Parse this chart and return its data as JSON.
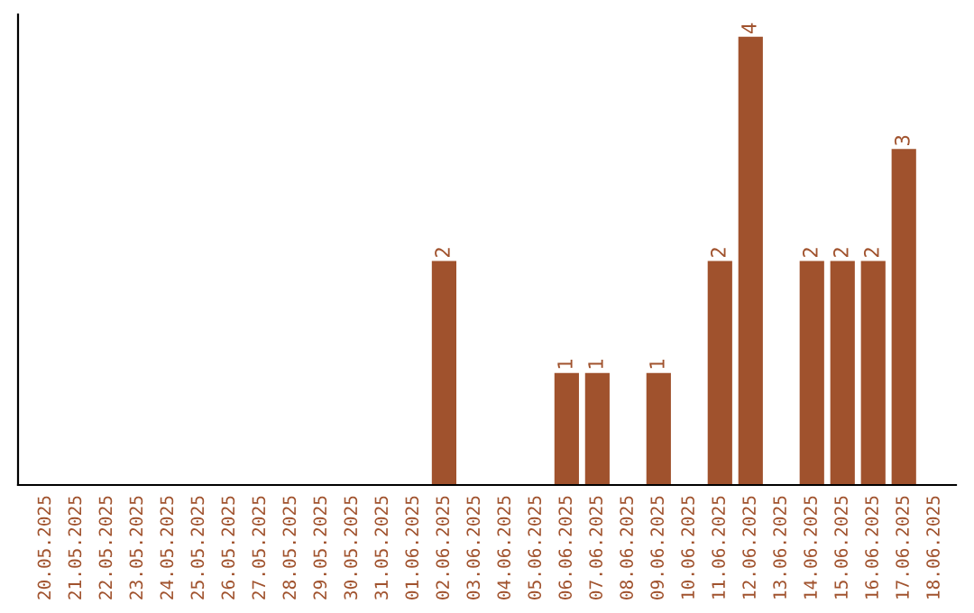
{
  "chart_data": {
    "type": "bar",
    "categories": [
      "20.05.2025",
      "21.05.2025",
      "22.05.2025",
      "23.05.2025",
      "24.05.2025",
      "25.05.2025",
      "26.05.2025",
      "27.05.2025",
      "28.05.2025",
      "29.05.2025",
      "30.05.2025",
      "31.05.2025",
      "01.06.2025",
      "02.06.2025",
      "03.06.2025",
      "04.06.2025",
      "05.06.2025",
      "06.06.2025",
      "07.06.2025",
      "08.06.2025",
      "09.06.2025",
      "10.06.2025",
      "11.06.2025",
      "12.06.2025",
      "13.06.2025",
      "14.06.2025",
      "15.06.2025",
      "16.06.2025",
      "17.06.2025",
      "18.06.2025"
    ],
    "values": [
      null,
      null,
      null,
      null,
      null,
      null,
      null,
      null,
      null,
      null,
      null,
      null,
      null,
      2,
      null,
      null,
      null,
      1,
      1,
      null,
      1,
      null,
      2,
      4,
      null,
      2,
      2,
      2,
      3,
      null
    ],
    "data_labels": true,
    "color": "#a0522d",
    "grid": false,
    "legend": false
  }
}
